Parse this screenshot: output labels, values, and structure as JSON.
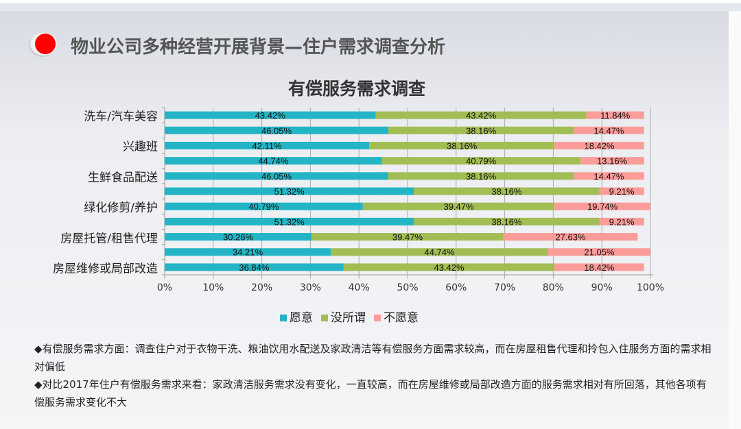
{
  "header": {
    "title": "物业公司多种经营开展背景—住户需求调查分析"
  },
  "chart_data": {
    "type": "bar",
    "orientation": "horizontal-stacked",
    "title": "有偿服务需求调查",
    "categories": [
      "洗车/汽车美容",
      "",
      "兴趣班",
      "",
      "生鲜食品配送",
      "",
      "绿化修剪/养护",
      "",
      "房屋托管/租售代理",
      "",
      "房屋维修或局部改造"
    ],
    "visible_category_labels": [
      "洗车/汽车美容",
      "兴趣班",
      "生鲜食品配送",
      "绿化修剪/养护",
      "房屋托管/租售代理",
      "房屋维修或局部改造"
    ],
    "series": [
      {
        "name": "愿意",
        "color": "#23b5c5",
        "values": [
          43.42,
          46.05,
          42.11,
          44.74,
          46.05,
          51.32,
          40.79,
          51.32,
          30.26,
          34.21,
          36.84
        ]
      },
      {
        "name": "没所谓",
        "color": "#a2bd54",
        "values": [
          43.42,
          38.16,
          38.16,
          40.79,
          38.16,
          38.16,
          39.47,
          38.16,
          39.47,
          44.74,
          43.42
        ]
      },
      {
        "name": "不愿意",
        "color": "#fc9c99",
        "values": [
          11.84,
          14.47,
          18.42,
          13.16,
          14.47,
          9.21,
          19.74,
          9.21,
          27.63,
          21.05,
          18.42
        ]
      }
    ],
    "xticks": [
      "0%",
      "10%",
      "20%",
      "30%",
      "40%",
      "50%",
      "60%",
      "70%",
      "80%",
      "90%",
      "100%"
    ],
    "xlim": [
      0,
      100
    ],
    "grid": true,
    "legend": "bottom"
  },
  "notes": [
    "◆有偿服务需求方面：调查住户对于衣物干洗、粮油饮用水配送及家政清洁等有偿服务方面需求较高，而在房屋租售代理和拎包入住服务方面的需求相对偏低",
    "◆对比2017年住户有偿服务需求来看：家政清洁服务需求没有变化，一直较高，而在房屋维修或局部改造方面的服务需求相对有所回落，其他各项有偿服务需求变化不大"
  ]
}
